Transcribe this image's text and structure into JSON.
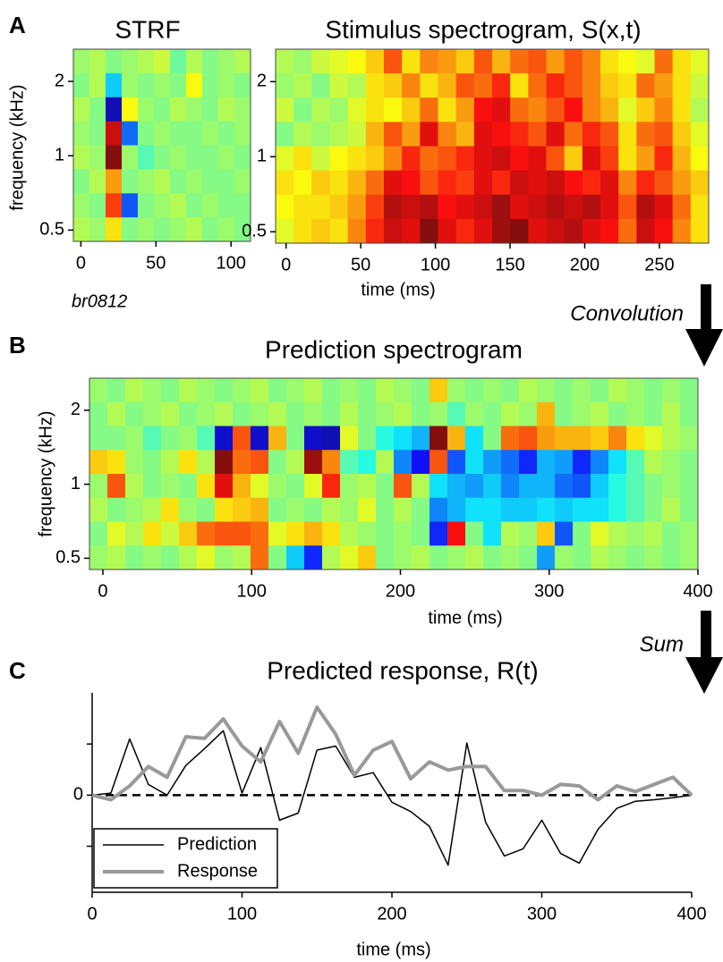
{
  "chart_data": [
    {
      "type": "heatmap",
      "panel_label": "A",
      "title": "STRF",
      "ylabel": "frequency (kHz)",
      "annotation": "br0812",
      "xlim": [
        -5,
        113
      ],
      "xticks": [
        0,
        50,
        100
      ],
      "ylim": [
        0.45,
        2.7
      ],
      "ylog": true,
      "yticks": [
        0.5,
        1,
        2
      ],
      "clim": [
        -1,
        1
      ],
      "colormap": "jet",
      "z": [
        [
          0.05,
          0.1,
          0.0,
          0.05,
          0.1,
          0.15,
          -0.05,
          0.1,
          0.0,
          0.05,
          0.1
        ],
        [
          0.0,
          0.1,
          -0.35,
          0.05,
          0.0,
          0.05,
          0.0,
          0.25,
          0.0,
          0.05,
          0.0
        ],
        [
          0.1,
          0.0,
          -0.9,
          0.25,
          0.05,
          0.0,
          0.1,
          0.05,
          0.0,
          0.1,
          0.05
        ],
        [
          0.05,
          0.0,
          0.85,
          -0.55,
          0.0,
          0.05,
          0.0,
          0.0,
          0.05,
          0.0,
          0.05
        ],
        [
          0.1,
          0.05,
          1.0,
          0.05,
          -0.1,
          0.0,
          0.05,
          0.0,
          0.0,
          0.05,
          0.0
        ],
        [
          0.0,
          0.1,
          0.45,
          0.0,
          0.05,
          0.1,
          0.0,
          0.05,
          0.0,
          0.0,
          0.05
        ],
        [
          0.05,
          0.0,
          0.65,
          -0.6,
          0.0,
          0.05,
          0.1,
          0.0,
          0.05,
          0.0,
          0.0
        ],
        [
          0.1,
          0.05,
          0.3,
          0.0,
          0.05,
          0.0,
          0.05,
          0.1,
          0.0,
          0.05,
          0.0
        ]
      ]
    },
    {
      "type": "heatmap",
      "title": "Stimulus spectrogram, S(x,t)",
      "xlabel": "time (ms)",
      "xlim": [
        -7,
        283
      ],
      "xticks": [
        0,
        50,
        100,
        150,
        200,
        250
      ],
      "ylim": [
        0.45,
        2.7
      ],
      "ylog": true,
      "yticks": [
        0.5,
        1,
        2
      ],
      "clim": [
        -1,
        1
      ],
      "colormap": "jet",
      "z": [
        [
          0.1,
          0.05,
          0.15,
          0.2,
          0.25,
          0.35,
          0.6,
          0.3,
          0.5,
          0.45,
          0.35,
          0.6,
          0.4,
          0.55,
          0.6,
          0.45,
          0.6,
          0.5,
          0.3,
          0.25,
          0.2,
          0.55,
          0.3,
          0.2
        ],
        [
          0.05,
          0.1,
          0.0,
          0.15,
          0.1,
          0.3,
          0.35,
          0.5,
          0.3,
          0.4,
          0.6,
          0.55,
          0.7,
          0.3,
          0.55,
          0.7,
          0.6,
          0.5,
          0.35,
          0.3,
          0.55,
          0.45,
          0.3,
          0.15
        ],
        [
          0.15,
          0.0,
          0.1,
          0.05,
          0.2,
          0.3,
          0.25,
          0.35,
          0.55,
          0.3,
          0.45,
          0.75,
          0.8,
          0.55,
          0.5,
          0.6,
          0.75,
          0.5,
          0.4,
          0.2,
          0.35,
          0.5,
          0.3,
          0.1
        ],
        [
          0.0,
          0.1,
          0.05,
          0.1,
          0.15,
          0.4,
          0.6,
          0.45,
          0.8,
          0.5,
          0.4,
          0.8,
          0.75,
          0.7,
          0.6,
          0.8,
          0.55,
          0.7,
          0.6,
          0.3,
          0.55,
          0.6,
          0.35,
          0.2
        ],
        [
          0.2,
          0.3,
          0.15,
          0.25,
          0.3,
          0.35,
          0.5,
          0.7,
          0.55,
          0.6,
          0.7,
          0.8,
          0.85,
          0.75,
          0.8,
          0.6,
          0.35,
          0.8,
          0.65,
          0.3,
          0.45,
          0.7,
          0.4,
          0.25
        ],
        [
          0.3,
          0.25,
          0.35,
          0.3,
          0.4,
          0.55,
          0.8,
          0.75,
          0.6,
          0.7,
          0.65,
          0.8,
          0.7,
          0.85,
          0.8,
          0.85,
          0.75,
          0.7,
          0.8,
          0.5,
          0.7,
          0.6,
          0.45,
          0.35
        ],
        [
          0.25,
          0.3,
          0.3,
          0.35,
          0.45,
          0.65,
          0.9,
          0.85,
          0.9,
          0.75,
          0.8,
          0.85,
          0.95,
          0.8,
          0.85,
          0.9,
          0.85,
          0.9,
          0.8,
          0.6,
          0.9,
          0.8,
          0.55,
          0.3
        ],
        [
          0.2,
          0.3,
          0.35,
          0.3,
          0.5,
          0.7,
          0.85,
          0.8,
          1.0,
          0.8,
          0.7,
          0.8,
          0.95,
          1.0,
          0.8,
          0.85,
          0.9,
          0.8,
          0.75,
          0.55,
          0.85,
          0.75,
          0.5,
          0.3
        ]
      ]
    },
    {
      "type": "heatmap",
      "panel_label": "B",
      "title": "Prediction spectrogram",
      "arrow_label": "Convolution",
      "xlabel": "time (ms)",
      "ylabel": "frequency (kHz)",
      "xlim": [
        -9,
        400
      ],
      "xticks": [
        0,
        100,
        200,
        300,
        400
      ],
      "ylim": [
        0.45,
        2.7
      ],
      "ylog": true,
      "yticks": [
        0.5,
        1,
        2
      ],
      "clim": [
        -1,
        1
      ],
      "colormap": "jet",
      "z": [
        [
          0.05,
          0.0,
          0.1,
          0.05,
          0.0,
          0.1,
          0.05,
          0.0,
          0.05,
          0.1,
          0.0,
          0.05,
          0.1,
          0.0,
          0.05,
          0.0,
          0.1,
          0.05,
          0.0,
          0.35,
          0.05,
          0.0,
          0.05,
          0.0,
          0.1,
          0.05,
          0.0,
          0.05,
          0.0,
          0.1,
          0.05,
          0.0,
          0.05,
          0.0
        ],
        [
          0.0,
          0.1,
          0.0,
          0.05,
          0.1,
          0.0,
          0.05,
          0.1,
          0.0,
          0.05,
          0.1,
          0.0,
          0.05,
          0.0,
          0.1,
          0.0,
          0.05,
          0.1,
          0.0,
          0.05,
          -0.1,
          0.05,
          0.0,
          0.1,
          0.05,
          0.4,
          0.0,
          0.05,
          0.1,
          0.0,
          0.05,
          0.0,
          0.1,
          0.0
        ],
        [
          0.0,
          0.0,
          0.05,
          -0.1,
          0.0,
          0.05,
          -0.1,
          -0.85,
          0.6,
          -0.85,
          0.4,
          0.0,
          -0.85,
          -0.9,
          0.2,
          0.0,
          -0.2,
          -0.3,
          -0.4,
          1.0,
          0.4,
          -0.3,
          0.0,
          0.55,
          0.6,
          0.45,
          0.4,
          0.4,
          0.35,
          0.5,
          0.3,
          0.2,
          0.1,
          0.05
        ],
        [
          0.35,
          0.3,
          0.05,
          0.0,
          0.1,
          0.3,
          0.1,
          1.0,
          0.55,
          0.6,
          0.0,
          0.1,
          0.95,
          0.5,
          -0.1,
          -0.2,
          0.1,
          -0.5,
          -0.75,
          0.6,
          -0.6,
          -0.3,
          -0.45,
          -0.55,
          -0.7,
          -0.4,
          -0.45,
          -0.7,
          -0.5,
          -0.3,
          -0.1,
          0.1,
          0.05,
          0.0
        ],
        [
          0.05,
          0.6,
          0.1,
          0.0,
          0.05,
          0.0,
          0.3,
          0.8,
          0.4,
          0.2,
          0.05,
          0.0,
          0.2,
          0.7,
          0.05,
          0.1,
          0.0,
          0.6,
          0.1,
          -0.3,
          -0.4,
          -0.45,
          -0.35,
          -0.5,
          -0.4,
          -0.4,
          -0.55,
          -0.6,
          -0.35,
          -0.2,
          -0.1,
          0.0,
          0.05,
          0.0
        ],
        [
          0.1,
          0.0,
          0.05,
          0.1,
          0.3,
          0.05,
          0.0,
          0.3,
          0.35,
          0.4,
          0.0,
          0.05,
          0.0,
          0.1,
          0.05,
          0.2,
          0.0,
          0.1,
          0.0,
          -0.5,
          -0.4,
          -0.3,
          -0.3,
          -0.35,
          -0.35,
          -0.3,
          -0.35,
          -0.3,
          -0.3,
          -0.2,
          -0.1,
          0.0,
          0.1,
          0.0
        ],
        [
          0.0,
          0.2,
          0.1,
          0.3,
          0.15,
          0.35,
          0.55,
          0.6,
          0.6,
          0.55,
          0.2,
          0.3,
          0.4,
          0.3,
          0.1,
          0.05,
          0.0,
          0.05,
          0.0,
          -0.7,
          0.75,
          0.0,
          -0.3,
          0.1,
          0.05,
          0.35,
          -0.6,
          0.0,
          0.2,
          0.1,
          0.05,
          0.1,
          0.0,
          0.05
        ],
        [
          0.05,
          0.1,
          0.0,
          0.05,
          0.0,
          0.1,
          0.2,
          0.05,
          0.1,
          0.55,
          0.0,
          -0.35,
          -0.7,
          0.1,
          0.2,
          0.35,
          0.0,
          0.05,
          0.1,
          0.0,
          0.05,
          0.1,
          0.0,
          0.05,
          0.0,
          -0.45,
          0.05,
          0.0,
          0.1,
          0.05,
          0.0,
          0.05,
          0.0,
          0.05
        ]
      ]
    },
    {
      "type": "line",
      "panel_label": "C",
      "title": "Predicted response, R(t)",
      "arrow_label": "Sum",
      "xlabel": "time (ms)",
      "xlim": [
        0,
        400
      ],
      "xticks": [
        0,
        100,
        200,
        300,
        400
      ],
      "ylim": [
        -1.9,
        2.0
      ],
      "yticks": [
        0
      ],
      "minor_yticks": [
        -1,
        1
      ],
      "zero_line": true,
      "legend": "lower left",
      "x": [
        0,
        12.5,
        25,
        37.5,
        50,
        62.5,
        75,
        87.5,
        100,
        112.5,
        125,
        137.5,
        150,
        162.5,
        175,
        187.5,
        200,
        212.5,
        225,
        237.5,
        250,
        262.5,
        275,
        287.5,
        300,
        312.5,
        325,
        337.5,
        350,
        362.5,
        375,
        387.5,
        400
      ],
      "series": [
        {
          "name": "Prediction",
          "color": "#000000",
          "linewidth": 1.5,
          "values": [
            0,
            0.04,
            1.1,
            0.21,
            0,
            0.58,
            0.91,
            1.26,
            0.04,
            0.93,
            -0.49,
            -0.35,
            0.88,
            0.96,
            0.35,
            0.44,
            -0.14,
            -0.32,
            -0.61,
            -1.37,
            1.02,
            -0.53,
            -1.19,
            -1.05,
            -0.49,
            -1.14,
            -1.33,
            -0.67,
            -0.26,
            -0.12,
            -0.09,
            -0.05,
            0
          ]
        },
        {
          "name": "Response",
          "color": "#999999",
          "linewidth": 4,
          "values": [
            0,
            -0.09,
            0.18,
            0.56,
            0.35,
            1.14,
            1.11,
            1.49,
            0.96,
            0.65,
            1.44,
            0.82,
            1.72,
            1.19,
            0.39,
            0.88,
            1.05,
            0.32,
            0.65,
            0.49,
            0.56,
            0.56,
            0.09,
            0.09,
            0,
            0.21,
            0.18,
            -0.09,
            0.18,
            0.07,
            0.21,
            0.35,
            0
          ]
        }
      ]
    }
  ]
}
